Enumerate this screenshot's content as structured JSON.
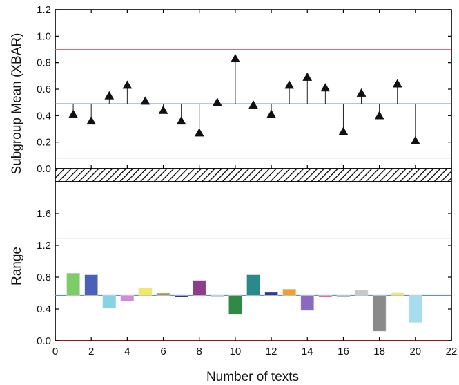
{
  "chart_data": {
    "type": "control-chart",
    "x_axis": {
      "label": "Number of texts",
      "range": [
        0,
        22
      ],
      "ticks": [
        0,
        2,
        4,
        6,
        8,
        10,
        12,
        14,
        16,
        18,
        20,
        22
      ],
      "tick_labels": [
        "0",
        "2",
        "4",
        "6",
        "8",
        "10",
        "12",
        "14",
        "16",
        "18",
        "20",
        "22"
      ]
    },
    "xbar_panel": {
      "ylabel": "Subgroup Mean (XBAR)",
      "ylim": [
        0.0,
        1.2
      ],
      "ticks": [
        0.0,
        0.2,
        0.4,
        0.6,
        0.8,
        1.0,
        1.2
      ],
      "tick_labels": [
        "0.0",
        "0.2",
        "0.4",
        "0.6",
        "0.8",
        "1.0",
        "1.2"
      ],
      "center_line": 0.49,
      "ucl": 0.9,
      "lcl": 0.08,
      "center_color": "#6a8fb5",
      "limit_color": "#e06c75",
      "marker": "triangle",
      "x": [
        1,
        2,
        3,
        4,
        5,
        6,
        7,
        8,
        9,
        10,
        11,
        12,
        13,
        14,
        15,
        16,
        17,
        18,
        19,
        20
      ],
      "values": [
        0.41,
        0.36,
        0.55,
        0.63,
        0.51,
        0.44,
        0.36,
        0.27,
        0.5,
        0.83,
        0.48,
        0.41,
        0.63,
        0.69,
        0.61,
        0.28,
        0.57,
        0.4,
        0.64,
        0.21
      ]
    },
    "range_panel": {
      "ylabel": "Range",
      "ylim": [
        0.0,
        2.0
      ],
      "ticks": [
        0.0,
        0.4,
        0.8,
        1.2,
        1.6
      ],
      "tick_labels": [
        "0.0",
        "0.4",
        "0.8",
        "1.2",
        "1.6"
      ],
      "center_line": 0.57,
      "ucl": 1.29,
      "lcl": 0.0,
      "center_color": "#6a8fb5",
      "limit_color": "#e06c75",
      "lcl_color": "#8b1a1a",
      "x": [
        1,
        2,
        3,
        4,
        5,
        6,
        7,
        8,
        9,
        10,
        11,
        12,
        13,
        14,
        15,
        16,
        17,
        18,
        19,
        20
      ],
      "values": [
        0.85,
        0.83,
        0.41,
        0.5,
        0.66,
        0.6,
        0.55,
        0.76,
        0.57,
        0.33,
        0.83,
        0.61,
        0.65,
        0.38,
        0.55,
        0.57,
        0.64,
        0.12,
        0.6,
        0.23
      ],
      "bar_colors": [
        "#7ccd66",
        "#4a5fb8",
        "#86d3e5",
        "#d48ad6",
        "#f2ea5a",
        "#a89550",
        "#2a3a8c",
        "#8c3d8c",
        "#b0c8e6",
        "#2f8a45",
        "#2a8a8a",
        "#2a3a8c",
        "#f0a030",
        "#8a6ac0",
        "#e26ab0",
        "#9aa0a8",
        "#c8c8c8",
        "#8a8a8a",
        "#f2ea5a",
        "#a6dced"
      ]
    }
  }
}
